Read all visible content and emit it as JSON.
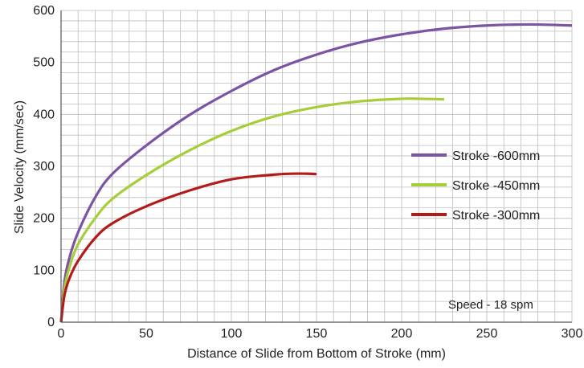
{
  "chart_data": {
    "type": "line",
    "xlabel": "Distance of Slide from Bottom of Stroke (mm)",
    "ylabel": "Slide Velocity (mm/sec)",
    "xlim": [
      0,
      300
    ],
    "ylim": [
      0,
      600
    ],
    "xticks": [
      0,
      50,
      100,
      150,
      200,
      250,
      300
    ],
    "yticks": [
      0,
      100,
      200,
      300,
      400,
      500,
      600
    ],
    "grid": true,
    "legend_position": "right",
    "annotation": "Speed - 18 spm",
    "series": [
      {
        "name": "Stroke -600mm",
        "color": "#7b54a3",
        "x": [
          0,
          2,
          5,
          10,
          20,
          30,
          50,
          75,
          100,
          125,
          150,
          175,
          200,
          225,
          250,
          275,
          300
        ],
        "y": [
          0,
          78,
          125,
          173,
          240,
          285,
          340,
          398,
          445,
          485,
          515,
          538,
          554,
          565,
          571,
          573,
          571
        ]
      },
      {
        "name": "Stroke -450mm",
        "color": "#a6ce39",
        "x": [
          0,
          2,
          5,
          10,
          20,
          30,
          50,
          75,
          100,
          125,
          150,
          175,
          200,
          210,
          225
        ],
        "y": [
          0,
          65,
          107,
          150,
          200,
          237,
          283,
          330,
          368,
          396,
          414,
          425,
          430,
          430,
          429
        ]
      },
      {
        "name": "Stroke -300mm",
        "color": "#b31b1b",
        "x": [
          0,
          2,
          5,
          10,
          20,
          30,
          50,
          75,
          100,
          125,
          140,
          150
        ],
        "y": [
          0,
          52,
          85,
          118,
          162,
          190,
          223,
          253,
          275,
          284,
          286,
          285
        ]
      }
    ]
  }
}
